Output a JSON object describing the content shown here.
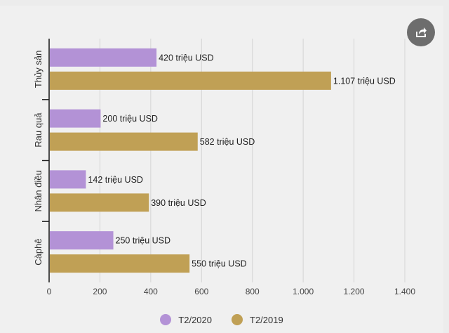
{
  "share": {
    "icon": "share-icon"
  },
  "chart_data": {
    "type": "bar",
    "orientation": "horizontal",
    "categories": [
      "Thủy sản",
      "Rau quả",
      "Nhân điều",
      "Càphê"
    ],
    "series": [
      {
        "name": "T2/2020",
        "color": "#b392d6",
        "values": [
          420,
          200,
          142,
          250
        ],
        "labels": [
          "420 triệu USD",
          "200 triệu USD",
          "142 triệu USD",
          "250 triệu USD"
        ]
      },
      {
        "name": "T2/2019",
        "color": "#c0a055",
        "values": [
          1107,
          582,
          390,
          550
        ],
        "labels": [
          "1.107 triệu USD",
          "582 triệu USD",
          "390 triệu USD",
          "550 triệu USD"
        ]
      }
    ],
    "xlim": [
      0,
      1400
    ],
    "ticks": [
      0,
      200,
      400,
      600,
      800,
      1000,
      1200,
      1400
    ],
    "tick_labels": [
      "0",
      "200",
      "400",
      "600",
      "800",
      "1.000",
      "1.200",
      "1.400"
    ],
    "grid": true,
    "legend_position": "bottom"
  }
}
